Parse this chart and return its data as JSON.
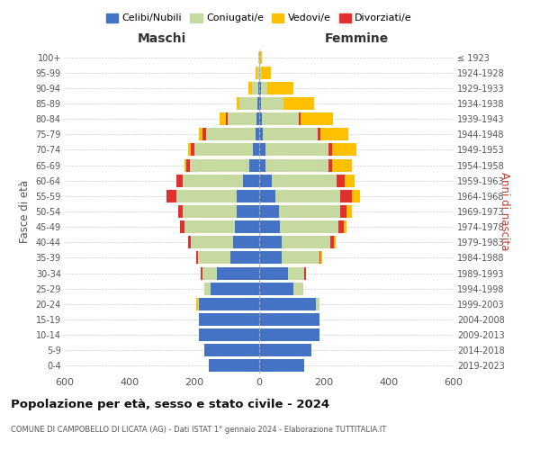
{
  "age_groups": [
    "0-4",
    "5-9",
    "10-14",
    "15-19",
    "20-24",
    "25-29",
    "30-34",
    "35-39",
    "40-44",
    "45-49",
    "50-54",
    "55-59",
    "60-64",
    "65-69",
    "70-74",
    "75-79",
    "80-84",
    "85-89",
    "90-94",
    "95-99",
    "100+"
  ],
  "birth_years": [
    "2019-2023",
    "2014-2018",
    "2009-2013",
    "2004-2008",
    "1999-2003",
    "1994-1998",
    "1989-1993",
    "1984-1988",
    "1979-1983",
    "1974-1978",
    "1969-1973",
    "1964-1968",
    "1959-1963",
    "1954-1958",
    "1949-1953",
    "1944-1948",
    "1939-1943",
    "1934-1938",
    "1929-1933",
    "1924-1928",
    "≤ 1923"
  ],
  "male": {
    "celibi": [
      155,
      170,
      185,
      185,
      185,
      150,
      130,
      90,
      80,
      75,
      70,
      70,
      50,
      30,
      20,
      10,
      8,
      5,
      2,
      0,
      0
    ],
    "coniugati": [
      0,
      0,
      0,
      0,
      5,
      20,
      45,
      100,
      130,
      155,
      165,
      185,
      185,
      185,
      180,
      155,
      90,
      55,
      20,
      5,
      2
    ],
    "vedovi": [
      0,
      0,
      0,
      0,
      5,
      0,
      0,
      0,
      0,
      0,
      0,
      0,
      0,
      5,
      10,
      10,
      20,
      10,
      10,
      5,
      0
    ],
    "divorziati": [
      0,
      0,
      0,
      0,
      0,
      0,
      5,
      5,
      10,
      15,
      15,
      30,
      20,
      10,
      10,
      10,
      5,
      0,
      0,
      0,
      0
    ]
  },
  "female": {
    "nubili": [
      140,
      160,
      185,
      185,
      175,
      105,
      90,
      70,
      70,
      65,
      60,
      50,
      40,
      20,
      20,
      10,
      8,
      5,
      5,
      0,
      0
    ],
    "coniugate": [
      0,
      0,
      0,
      0,
      10,
      30,
      50,
      115,
      150,
      180,
      190,
      200,
      200,
      195,
      195,
      170,
      115,
      70,
      20,
      5,
      3
    ],
    "vedove": [
      0,
      0,
      0,
      0,
      0,
      0,
      0,
      5,
      5,
      10,
      15,
      25,
      30,
      60,
      75,
      85,
      100,
      95,
      80,
      30,
      5
    ],
    "divorziate": [
      0,
      0,
      0,
      0,
      0,
      0,
      5,
      5,
      10,
      15,
      20,
      35,
      25,
      10,
      10,
      10,
      5,
      0,
      0,
      0,
      0
    ]
  },
  "colors": {
    "celibi": "#4472c4",
    "coniugati": "#c5d9a0",
    "vedovi": "#ffc000",
    "divorziati": "#e03030"
  },
  "legend_labels": [
    "Celibi/Nubili",
    "Coniugati/e",
    "Vedovi/e",
    "Divorziati/e"
  ],
  "title": "Popolazione per età, sesso e stato civile - 2024",
  "subtitle": "COMUNE DI CAMPOBELLO DI LICATA (AG) - Dati ISTAT 1° gennaio 2024 - Elaborazione TUTTITALIA.IT",
  "xlabel_left": "Maschi",
  "xlabel_right": "Femmine",
  "ylabel_left": "Fasce di età",
  "ylabel_right": "Anni di nascita",
  "xlim": 600,
  "bg_color": "#ffffff",
  "grid_color": "#cccccc"
}
